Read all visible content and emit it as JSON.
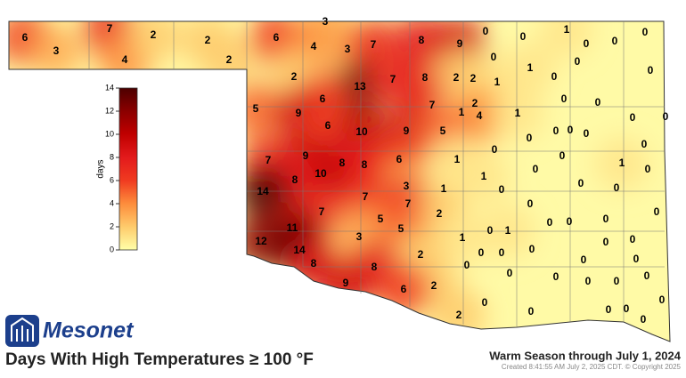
{
  "title": "Days With High Temperatures ≥ 100 °F",
  "period": "Warm Season through July 1, 2024",
  "created": "Created 8:41:55 AM July 2, 2025 CDT. © Copyright 2025",
  "logo": "Mesonet",
  "colorbar": {
    "label": "days",
    "lim": [
      0,
      14
    ],
    "ticks": [
      0,
      2,
      4,
      6,
      8,
      10,
      12,
      14
    ]
  },
  "stations": [
    6,
    3,
    7,
    4,
    2,
    2,
    2,
    3,
    6,
    4,
    3,
    7,
    8,
    9,
    0,
    0,
    1,
    0,
    0,
    0,
    0,
    0,
    1,
    0,
    2,
    13,
    7,
    8,
    2,
    2,
    1,
    0,
    6,
    5,
    9,
    7,
    1,
    2,
    4,
    1,
    0,
    0,
    6,
    10,
    9,
    5,
    0,
    0,
    0,
    0,
    0,
    0,
    7,
    9,
    8,
    8,
    6,
    1,
    0,
    0,
    0,
    1,
    0,
    10,
    8,
    0,
    1,
    0,
    0,
    14,
    3,
    7,
    1,
    7,
    0,
    0,
    0,
    7,
    5,
    2,
    0,
    0,
    0,
    0,
    1,
    11,
    5,
    3,
    1,
    0,
    0,
    0,
    12,
    14,
    0,
    0,
    8,
    2,
    0,
    0,
    0,
    8,
    9,
    2,
    0,
    0,
    0,
    0,
    0,
    6,
    0,
    0,
    2,
    0,
    0,
    0,
    0
  ]
}
